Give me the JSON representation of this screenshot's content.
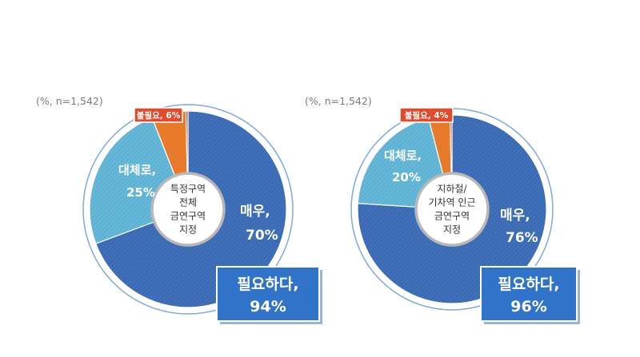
{
  "chart_data": [
    {
      "type": "pie",
      "note": "(%, n=1,542)",
      "center_label": [
        "특정구역",
        "전체",
        "금연구역",
        "지정"
      ],
      "slices": [
        {
          "label": "매우,",
          "value": 70,
          "display": "70%",
          "color": "#3a6bb4"
        },
        {
          "label": "대체로,",
          "value": 25,
          "display": "25%",
          "color": "#5eb3d4"
        },
        {
          "label": "불필요,",
          "value": 6,
          "display": "6%",
          "color": "#e87b2a"
        }
      ],
      "tiny_slice_color": "#d23b2e",
      "callout": {
        "label": "불필요, 6%"
      },
      "summary": {
        "line1": "필요하다,",
        "line2": "94%"
      }
    },
    {
      "type": "pie",
      "note": "(%, n=1,542)",
      "center_label": [
        "지하철/",
        "기차역 인근",
        "금연구역",
        "지정"
      ],
      "slices": [
        {
          "label": "매우,",
          "value": 76,
          "display": "76%",
          "color": "#3a6bb4"
        },
        {
          "label": "대체로,",
          "value": 20,
          "display": "20%",
          "color": "#5eb3d4"
        },
        {
          "label": "불필요,",
          "value": 4,
          "display": "4%",
          "color": "#e87b2a"
        }
      ],
      "tiny_slice_color": "#d23b2e",
      "callout": {
        "label": "불필요, 4%"
      },
      "summary": {
        "line1": "필요하다,",
        "line2": "96%"
      }
    }
  ]
}
